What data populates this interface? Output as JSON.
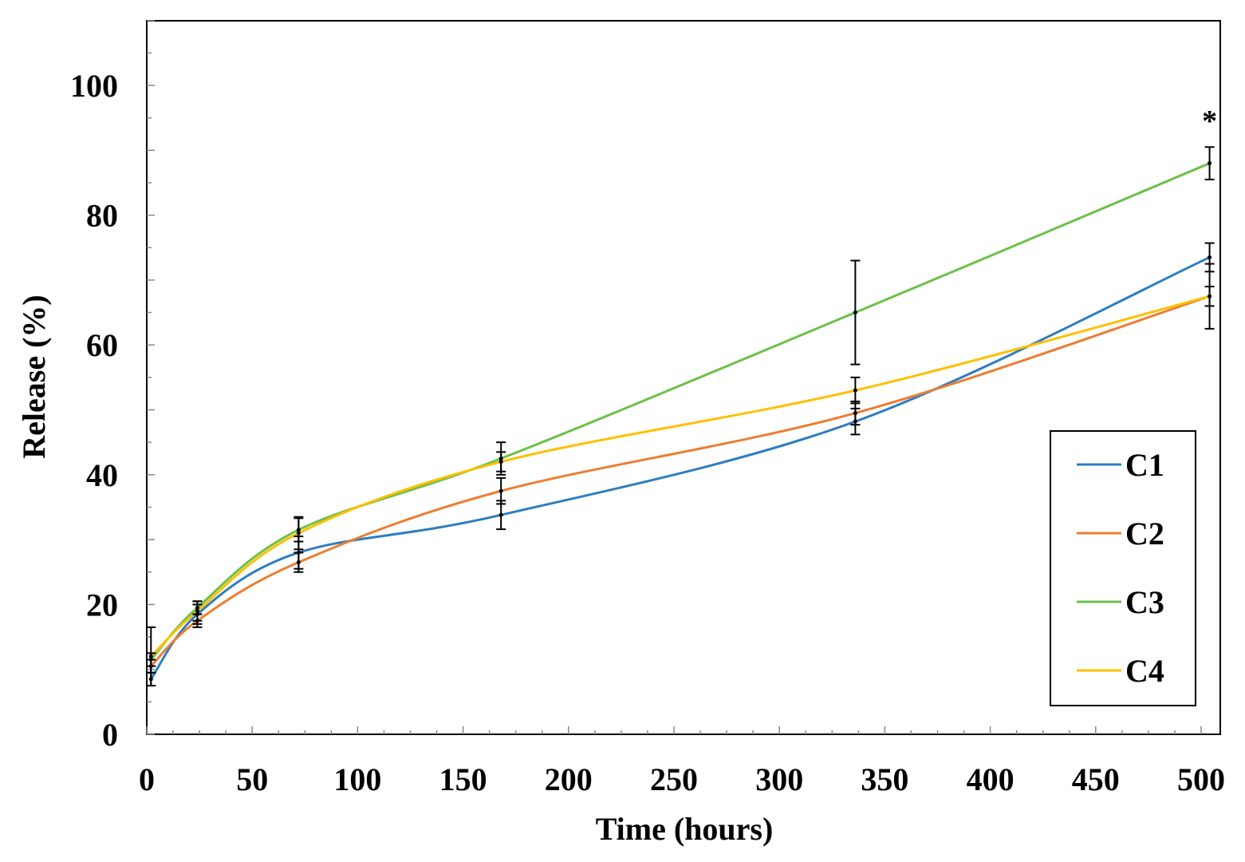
{
  "chart_data": {
    "type": "line",
    "title": "",
    "xlabel": "Time (hours)",
    "ylabel": "Release (%)",
    "xlim": [
      0,
      510
    ],
    "ylim": [
      0,
      110
    ],
    "xticks": [
      0,
      50,
      100,
      150,
      200,
      250,
      300,
      350,
      400,
      450,
      500
    ],
    "yticks": [
      0,
      20,
      40,
      60,
      80,
      100
    ],
    "legend_position": "bottom-right",
    "x": [
      2,
      24,
      72,
      168,
      336,
      504
    ],
    "series": [
      {
        "name": "C1",
        "color": "#2E7DC0",
        "values": [
          8.5,
          18.5,
          28.0,
          33.8,
          48.2,
          73.5
        ],
        "errors": [
          1.0,
          1.5,
          2.5,
          2.2,
          2.0,
          2.2
        ]
      },
      {
        "name": "C2",
        "color": "#ED7D31",
        "values": [
          10.5,
          17.5,
          26.5,
          37.5,
          49.5,
          67.5
        ],
        "errors": [
          1.0,
          1.0,
          1.5,
          2.0,
          1.8,
          1.5
        ]
      },
      {
        "name": "C3",
        "color": "#6CC04A",
        "values": [
          11.5,
          19.5,
          31.5,
          42.5,
          65.0,
          88.0
        ],
        "errors": [
          1.0,
          1.0,
          1.8,
          2.5,
          8.0,
          2.5
        ]
      },
      {
        "name": "C4",
        "color": "#FFC000",
        "values": [
          12.0,
          19.0,
          31.0,
          42.0,
          53.0,
          67.5
        ],
        "errors": [
          4.5,
          1.5,
          2.5,
          1.5,
          2.0,
          5.0
        ]
      }
    ],
    "annotations": [
      {
        "text": "*",
        "x": 504,
        "y": 94
      }
    ]
  }
}
